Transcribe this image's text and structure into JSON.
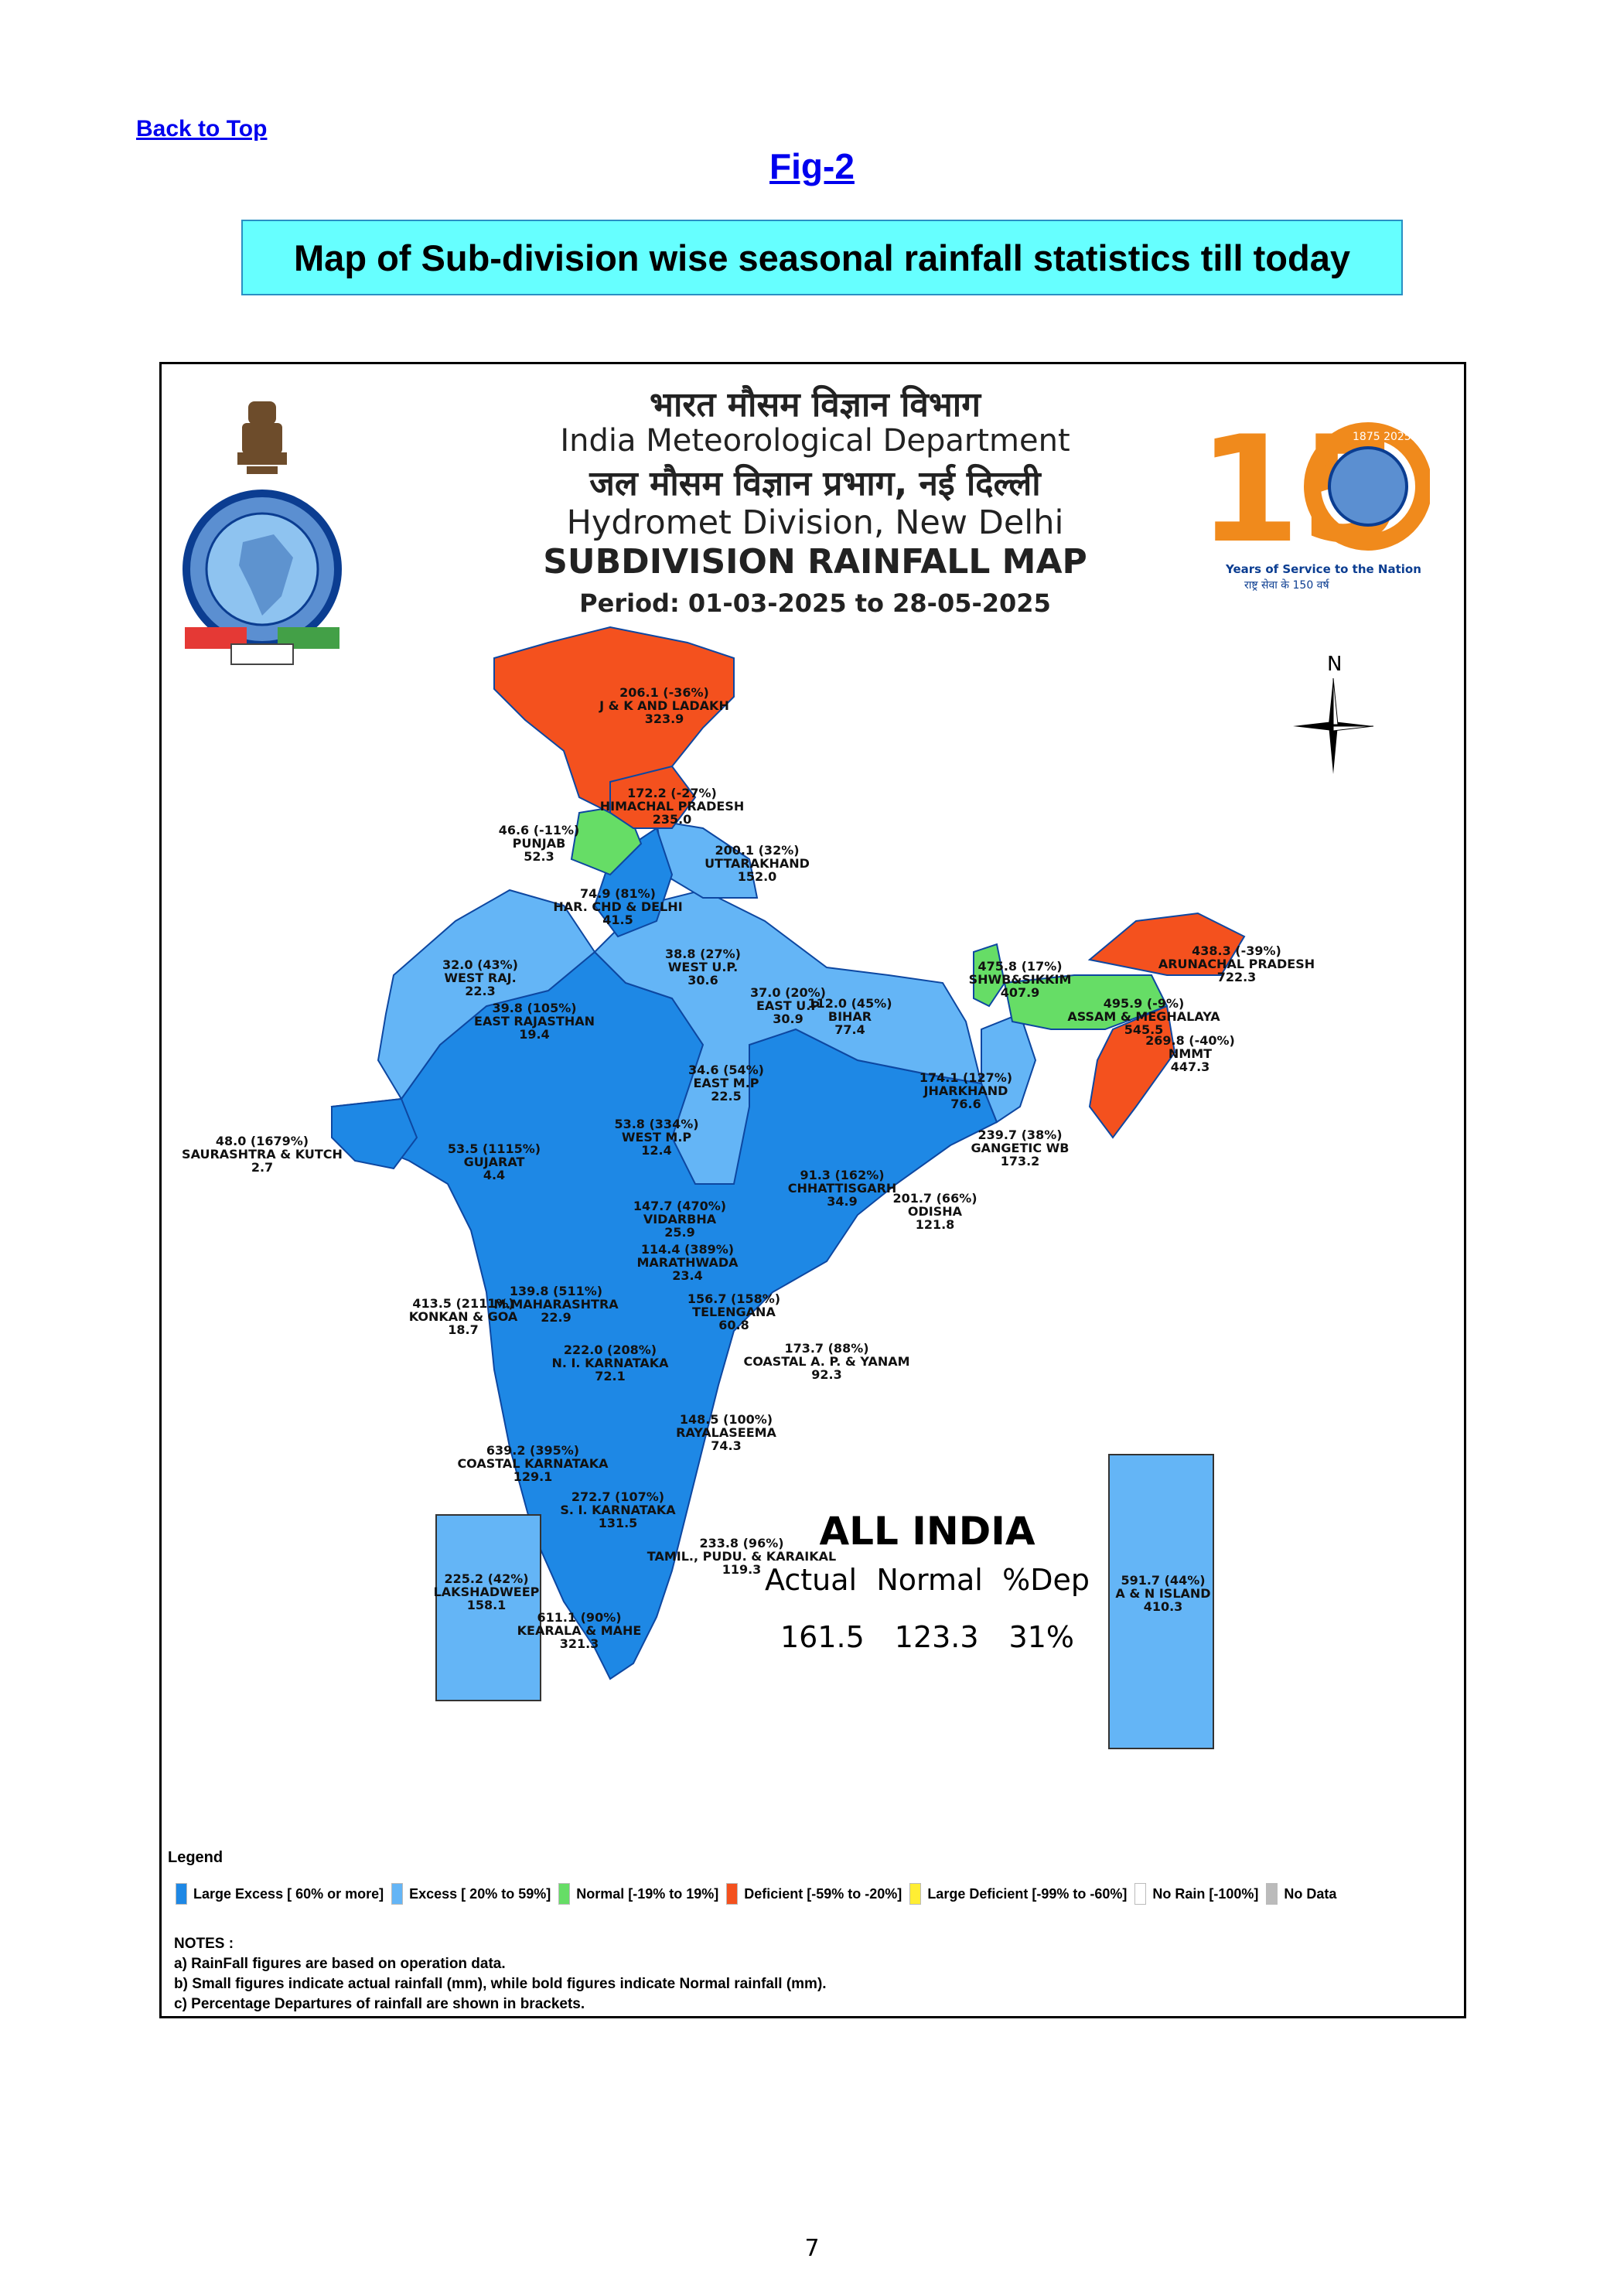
{
  "nav": {
    "back_to_top": "Back to Top"
  },
  "figure": {
    "label": "Fig-2",
    "title": "Map of Sub-division wise seasonal rainfall statistics till today"
  },
  "map_header": {
    "hindi_org": "भारत मौसम विज्ञान विभाग",
    "org": "India Meteorological Department",
    "hindi_division": "जल मौसम विज्ञान प्रभाग, नई दिल्ली",
    "division": "Hydromet Division, New Delhi",
    "map_title": "SUBDIVISION RAINFALL MAP",
    "period": "Period: 01-03-2025 to 28-05-2025"
  },
  "logo_150": {
    "years": "1875 2025",
    "tagline": "Years of Service to the Nation",
    "hindi_tagline": "राष्ट्र सेवा के 150 वर्ष"
  },
  "compass": {
    "north": "N"
  },
  "colors": {
    "large_excess": "#1e88e5",
    "excess": "#64b5f6",
    "normal": "#66dd66",
    "deficient": "#f4511e",
    "large_deficient": "#ffee33",
    "no_rain": "#ffffff",
    "no_data": "#bbbbbb"
  },
  "subdivisions": [
    {
      "actual": "206.1 (-36%)",
      "name": "J & K AND LADAKH",
      "normal": "323.9",
      "category": "deficient"
    },
    {
      "actual": "172.2 (-27%)",
      "name": "HIMACHAL PRADESH",
      "normal": "235.0",
      "category": "deficient"
    },
    {
      "actual": "46.6 (-11%)",
      "name": "PUNJAB",
      "normal": "52.3",
      "category": "normal"
    },
    {
      "actual": "200.1 (32%)",
      "name": "UTTARAKHAND",
      "normal": "152.0",
      "category": "excess"
    },
    {
      "actual": "74.9 (81%)",
      "name": "HAR. CHD & DELHI",
      "normal": "41.5",
      "category": "large_excess"
    },
    {
      "actual": "32.0 (43%)",
      "name": "WEST RAJ.",
      "normal": "22.3",
      "category": "excess"
    },
    {
      "actual": "38.8 (27%)",
      "name": "WEST U.P.",
      "normal": "30.6",
      "category": "excess"
    },
    {
      "actual": "37.0 (20%)",
      "name": "EAST U.P",
      "normal": "30.9",
      "category": "excess"
    },
    {
      "actual": "39.8 (105%)",
      "name": "EAST RAJASTHAN",
      "normal": "19.4",
      "category": "large_excess"
    },
    {
      "actual": "112.0 (45%)",
      "name": "BIHAR",
      "normal": "77.4",
      "category": "excess"
    },
    {
      "actual": "475.8 (17%)",
      "name": "SHWB&SIKKIM",
      "normal": "407.9",
      "category": "normal"
    },
    {
      "actual": "438.3 (-39%)",
      "name": "ARUNACHAL PRADESH",
      "normal": "722.3",
      "category": "deficient"
    },
    {
      "actual": "495.9 (-9%)",
      "name": "ASSAM & MEGHALAYA",
      "normal": "545.5",
      "category": "normal"
    },
    {
      "actual": "269.8 (-40%)",
      "name": "NMMT",
      "normal": "447.3",
      "category": "deficient"
    },
    {
      "actual": "34.6 (54%)",
      "name": "EAST M.P",
      "normal": "22.5",
      "category": "excess"
    },
    {
      "actual": "174.1 (127%)",
      "name": "JHARKHAND",
      "normal": "76.6",
      "category": "large_excess"
    },
    {
      "actual": "239.7 (38%)",
      "name": "GANGETIC WB",
      "normal": "173.2",
      "category": "excess"
    },
    {
      "actual": "53.8 (334%)",
      "name": "WEST M.P",
      "normal": "12.4",
      "category": "large_excess"
    },
    {
      "actual": "48.0 (1679%)",
      "name": "SAURASHTRA & KUTCH",
      "normal": "2.7",
      "category": "large_excess"
    },
    {
      "actual": "53.5 (1115%)",
      "name": "GUJARAT",
      "normal": "4.4",
      "category": "large_excess"
    },
    {
      "actual": "91.3 (162%)",
      "name": "CHHATTISGARH",
      "normal": "34.9",
      "category": "large_excess"
    },
    {
      "actual": "201.7 (66%)",
      "name": "ODISHA",
      "normal": "121.8",
      "category": "large_excess"
    },
    {
      "actual": "147.7 (470%)",
      "name": "VIDARBHA",
      "normal": "25.9",
      "category": "large_excess"
    },
    {
      "actual": "114.4 (389%)",
      "name": "MARATHWADA",
      "normal": "23.4",
      "category": "large_excess"
    },
    {
      "actual": "139.8 (511%)",
      "name": "M.MAHARASHTRA",
      "normal": "22.9",
      "category": "large_excess"
    },
    {
      "actual": "413.5 (2111%)",
      "name": "KONKAN & GOA",
      "normal": "18.7",
      "category": "large_excess"
    },
    {
      "actual": "156.7 (158%)",
      "name": "TELENGANA",
      "normal": "60.8",
      "category": "large_excess"
    },
    {
      "actual": "173.7 (88%)",
      "name": "COASTAL A. P. & YANAM",
      "normal": "92.3",
      "category": "large_excess"
    },
    {
      "actual": "222.0 (208%)",
      "name": "N. I. KARNATAKA",
      "normal": "72.1",
      "category": "large_excess"
    },
    {
      "actual": "148.5 (100%)",
      "name": "RAYALASEEMA",
      "normal": "74.3",
      "category": "large_excess"
    },
    {
      "actual": "639.2 (395%)",
      "name": "COASTAL KARNATAKA",
      "normal": "129.1",
      "category": "large_excess"
    },
    {
      "actual": "272.7 (107%)",
      "name": "S. I. KARNATAKA",
      "normal": "131.5",
      "category": "large_excess"
    },
    {
      "actual": "233.8 (96%)",
      "name": "TAMIL., PUDU. & KARAIKAL",
      "normal": "119.3",
      "category": "large_excess"
    },
    {
      "actual": "225.2 (42%)",
      "name": "LAKSHADWEEP",
      "normal": "158.1",
      "category": "excess"
    },
    {
      "actual": "611.1 (90%)",
      "name": "KEARALA & MAHE",
      "normal": "321.3",
      "category": "large_excess"
    },
    {
      "actual": "591.7 (44%)",
      "name": "A & N ISLAND",
      "normal": "410.3",
      "category": "excess"
    }
  ],
  "all_india": {
    "title": "ALL INDIA",
    "headers": [
      "Actual",
      "Normal",
      "%Dep"
    ],
    "values": [
      "161.5",
      "123.3",
      "31%"
    ]
  },
  "legend": {
    "title": "Legend",
    "items": [
      {
        "label": "Large Excess [ 60% or more]",
        "color": "#1e88e5"
      },
      {
        "label": "Excess [ 20% to 59%]",
        "color": "#64b5f6"
      },
      {
        "label": "Normal [-19% to 19%]",
        "color": "#66dd66"
      },
      {
        "label": "Deficient [-59% to -20%]",
        "color": "#f4511e"
      },
      {
        "label": "Large Deficient [-99% to -60%]",
        "color": "#ffee33"
      },
      {
        "label": "No Rain [-100%]",
        "color": "#ffffff"
      },
      {
        "label": "No Data",
        "color": "#bbbbbb"
      }
    ]
  },
  "notes": {
    "title": "NOTES :",
    "lines": [
      "a) RainFall figures are based on operation data.",
      "b) Small figures indicate actual rainfall (mm), while bold figures indicate Normal rainfall (mm).",
      "c) Percentage Departures of rainfall are shown in brackets."
    ]
  },
  "page": {
    "number": "7"
  }
}
